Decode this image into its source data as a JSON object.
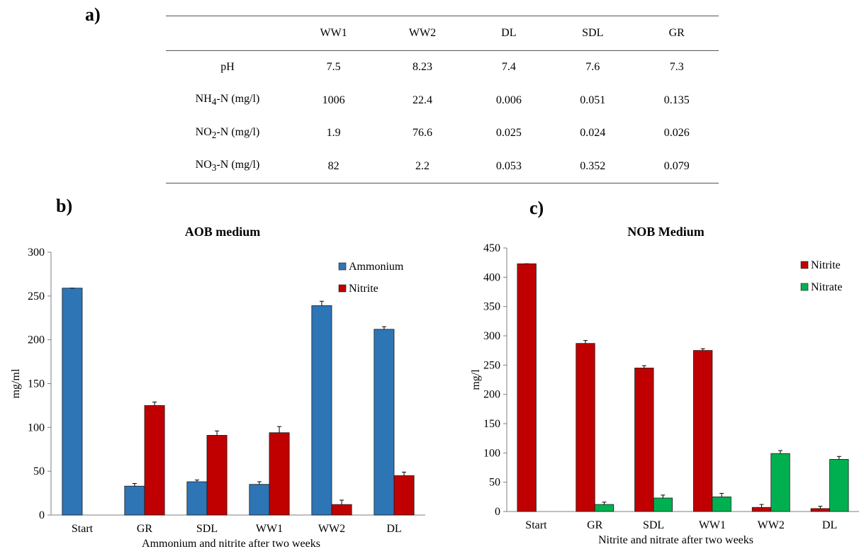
{
  "panels": {
    "a": "a)",
    "b": "b)",
    "c": "c)"
  },
  "table": {
    "headers": [
      "",
      "WW1",
      "WW2",
      "DL",
      "SDL",
      "GR"
    ],
    "rows": [
      {
        "param": "pH",
        "values": [
          "7.5",
          "8.23",
          "7.4",
          "7.6",
          "7.3"
        ]
      },
      {
        "param_main": "NH",
        "param_sub": "4",
        "param_rest": "-N (mg/l)",
        "values": [
          "1006",
          "22.4",
          "0.006",
          "0.051",
          "0.135"
        ]
      },
      {
        "param_main": "NO",
        "param_sub": "2",
        "param_rest": "-N (mg/l)",
        "values": [
          "1.9",
          "76.6",
          "0.025",
          "0.024",
          "0.026"
        ]
      },
      {
        "param_main": "NO",
        "param_sub": "3",
        "param_rest": "-N (mg/l)",
        "values": [
          "82",
          "2.2",
          "0.053",
          "0.352",
          "0.079"
        ]
      }
    ]
  },
  "chart_data": [
    {
      "type": "bar",
      "title": "AOB medium",
      "xlabel": "Ammonium and nitrite after two weeks",
      "ylabel": "mg/ml",
      "ylim": [
        0,
        300
      ],
      "yticks": [
        0,
        50,
        100,
        150,
        200,
        250,
        300
      ],
      "categories": [
        "Start",
        "GR",
        "SDL",
        "WW1",
        "WW2",
        "DL"
      ],
      "legend": "top-right",
      "series": [
        {
          "name": "Ammonium",
          "color": "#2e75b6",
          "values": [
            259,
            33,
            38,
            35,
            239,
            212
          ],
          "errors": [
            0,
            3,
            2,
            3,
            5,
            3
          ]
        },
        {
          "name": "Nitrite",
          "color": "#c00000",
          "values": [
            0,
            125,
            91,
            94,
            12,
            45
          ],
          "errors": [
            0,
            4,
            5,
            7,
            5,
            4
          ]
        }
      ]
    },
    {
      "type": "bar",
      "title": "NOB Medium",
      "xlabel": "Nitrite and nitrate after two weeks",
      "ylabel": "mg/l",
      "ylim": [
        0,
        450
      ],
      "yticks": [
        0,
        50,
        100,
        150,
        200,
        250,
        300,
        350,
        400,
        450
      ],
      "categories": [
        "Start",
        "GR",
        "SDL",
        "WW1",
        "WW2",
        "DL"
      ],
      "legend": "top-right",
      "series": [
        {
          "name": "Nitrite",
          "color": "#c00000",
          "values": [
            423,
            287,
            245,
            275,
            7,
            5
          ],
          "errors": [
            0,
            5,
            4,
            3,
            5,
            4
          ]
        },
        {
          "name": "Nitrate",
          "color": "#00b050",
          "values": [
            0,
            12,
            23,
            25,
            99,
            89
          ],
          "errors": [
            0,
            4,
            5,
            6,
            5,
            5
          ]
        }
      ]
    }
  ]
}
